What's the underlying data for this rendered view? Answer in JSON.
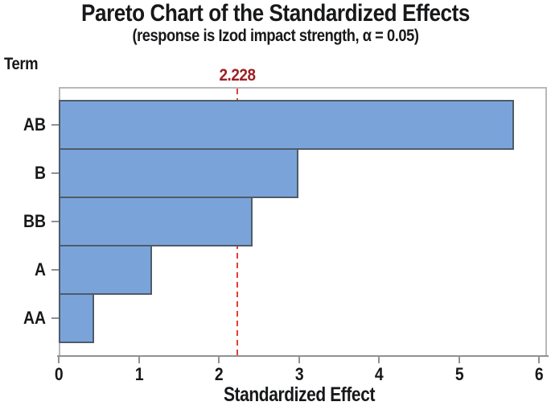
{
  "chart_data": {
    "type": "bar",
    "orientation": "horizontal",
    "title": "Pareto Chart of the Standardized Effects",
    "subtitle": "(response is Izod impact strength, α = 0.05)",
    "xlabel": "Standardized Effect",
    "ylabel": "Term",
    "categories": [
      "AB",
      "B",
      "BB",
      "A",
      "AA"
    ],
    "values": [
      5.67,
      2.97,
      2.4,
      1.15,
      0.42
    ],
    "xlim": [
      0,
      6
    ],
    "x_ticks": [
      "0",
      "1",
      "2",
      "3",
      "4",
      "5",
      "6"
    ],
    "reference_line": {
      "value": 2.228,
      "label": "2.228"
    },
    "grid": false,
    "legend": "none",
    "colors": {
      "bar_fill": "#7aa4d9",
      "bar_border": "#4f5b68",
      "reference_line": "#e23e37",
      "reference_label": "#9b2227",
      "plot_border": "#b6b9bc",
      "axis": "#8f9294",
      "text": "#17181a"
    }
  }
}
